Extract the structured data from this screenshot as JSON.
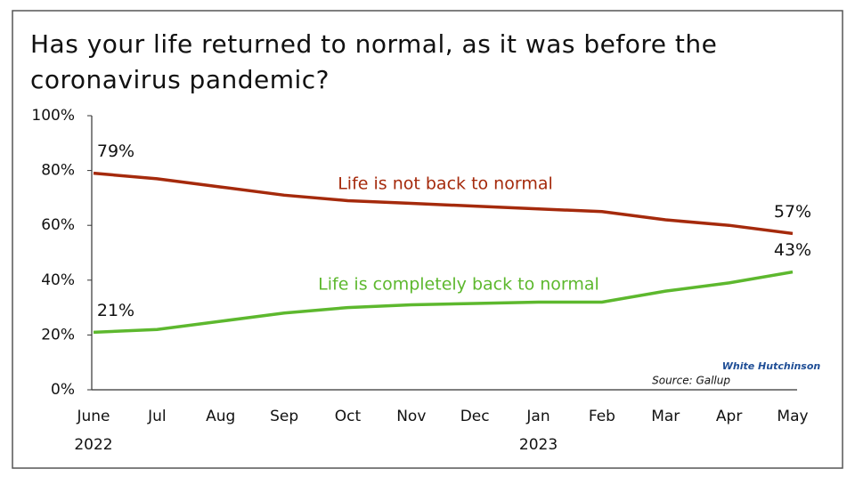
{
  "chart_data": {
    "type": "line",
    "title": "Has your life returned to normal, as it was before the coronavirus pandemic?",
    "categories": [
      "June",
      "Jul",
      "Aug",
      "Sep",
      "Oct",
      "Nov",
      "Dec",
      "Jan",
      "Feb",
      "Mar",
      "Apr",
      "May"
    ],
    "years": [
      "2022",
      null,
      null,
      null,
      null,
      null,
      null,
      "2023",
      null,
      null,
      null,
      null
    ],
    "series": [
      {
        "name": "Life is not back to normal",
        "color": "#a52a0c",
        "values": [
          79,
          77,
          74,
          71,
          69,
          68,
          67,
          66,
          65,
          62,
          60,
          57
        ],
        "value_labels": [
          "79%",
          null,
          null,
          null,
          null,
          null,
          null,
          null,
          null,
          null,
          null,
          "57%"
        ]
      },
      {
        "name": "Life is completely back to normal",
        "color": "#5db82e",
        "values": [
          21,
          22,
          25,
          28,
          30,
          31,
          31.5,
          32,
          32,
          36,
          39,
          43
        ],
        "value_labels": [
          "21%",
          null,
          null,
          null,
          null,
          null,
          null,
          null,
          null,
          null,
          null,
          "43%"
        ]
      }
    ],
    "ylim": [
      0,
      100
    ],
    "yticks": [
      {
        "value": 0,
        "label": "0%"
      },
      {
        "value": 20,
        "label": "20%"
      },
      {
        "value": 40,
        "label": "40%"
      },
      {
        "value": 60,
        "label": "60%"
      },
      {
        "value": 80,
        "label": "80%"
      },
      {
        "value": 100,
        "label": "100%"
      }
    ],
    "source": "Source: Gallup",
    "logo_text": "White Hutchinson"
  }
}
